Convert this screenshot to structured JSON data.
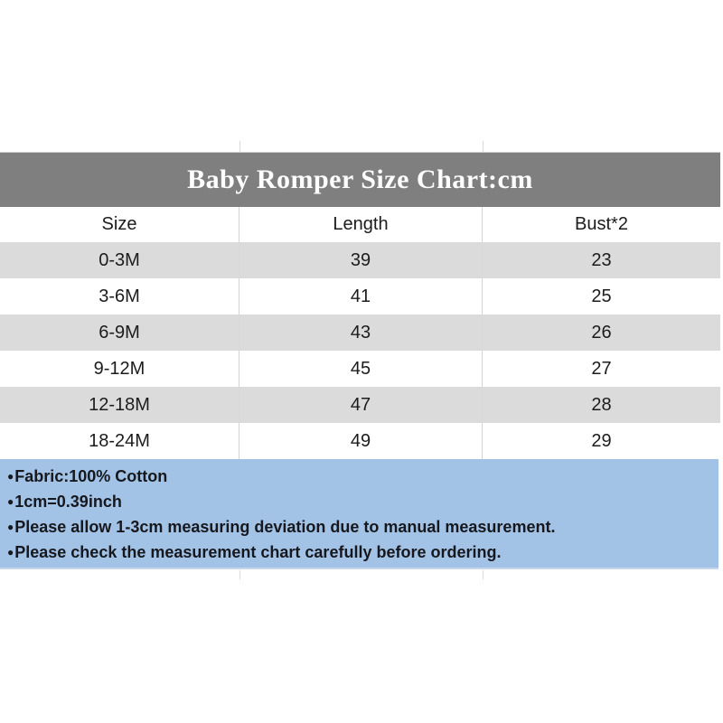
{
  "title": "Baby Romper Size Chart:cm",
  "table": {
    "headers": [
      "Size",
      "Length",
      "Bust*2"
    ],
    "rows": [
      [
        "0-3M",
        "39",
        "23"
      ],
      [
        "3-6M",
        "41",
        "25"
      ],
      [
        "6-9M",
        "43",
        "26"
      ],
      [
        "9-12M",
        "45",
        "27"
      ],
      [
        "12-18M",
        "47",
        "28"
      ],
      [
        "18-24M",
        "49",
        "29"
      ]
    ]
  },
  "notes": {
    "bullet": "●",
    "items": [
      "Fabric:100% Cotton",
      "1cm=0.39inch",
      "Please allow 1-3cm measuring deviation due to manual measurement.",
      "Please check the measurement chart carefully before ordering."
    ]
  },
  "colors": {
    "title_bar": "#7f7f7f",
    "title_text": "#ffffff",
    "row_alt": "#dbdbdb",
    "notes_bg": "#a2c3e6",
    "cell_text": "#1c1c1c"
  },
  "chart_data": {
    "type": "table",
    "title": "Baby Romper Size Chart:cm",
    "units": "cm",
    "columns": [
      "Size",
      "Length",
      "Bust*2"
    ],
    "rows": [
      [
        "0-3M",
        39,
        23
      ],
      [
        "3-6M",
        41,
        25
      ],
      [
        "6-9M",
        43,
        26
      ],
      [
        "9-12M",
        45,
        27
      ],
      [
        "12-18M",
        47,
        28
      ],
      [
        "18-24M",
        49,
        29
      ]
    ],
    "footnotes": [
      "Fabric:100% Cotton",
      "1cm=0.39inch",
      "Please allow 1-3cm measuring deviation due to manual measurement.",
      "Please check the measurement chart carefully before ordering."
    ]
  }
}
